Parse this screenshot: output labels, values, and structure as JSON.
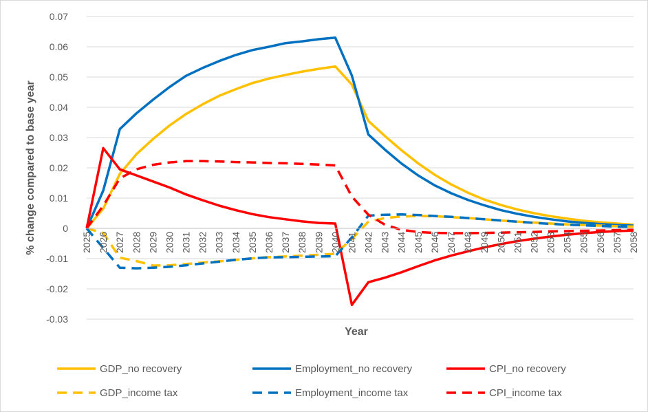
{
  "chart_data": {
    "type": "line",
    "title": "",
    "xlabel": "Year",
    "ylabel": "% change compared to base year",
    "ylim": [
      -0.03,
      0.07
    ],
    "ytick_step": 0.01,
    "grid": "horizontal",
    "legend_position": "bottom",
    "x": [
      2025,
      2026,
      2027,
      2028,
      2029,
      2030,
      2031,
      2032,
      2033,
      2034,
      2035,
      2036,
      2037,
      2038,
      2039,
      2040,
      2041,
      2042,
      2043,
      2044,
      2045,
      2046,
      2047,
      2048,
      2049,
      2050,
      2051,
      2052,
      2053,
      2054,
      2055,
      2056,
      2057,
      2058
    ],
    "yticks": [
      "0.07",
      "0.06",
      "0.05",
      "0.04",
      "0.03",
      "0.02",
      "0.01",
      "0",
      "-0.01",
      "-0.02",
      "-0.03"
    ],
    "series": [
      {
        "name": "GDP_no recovery",
        "color": "#FFC000",
        "dash": false,
        "values": [
          0,
          0.0065,
          0.018,
          0.0245,
          0.0295,
          0.034,
          0.0378,
          0.041,
          0.0438,
          0.046,
          0.048,
          0.0495,
          0.0507,
          0.0518,
          0.0527,
          0.0535,
          0.0475,
          0.0355,
          0.0305,
          0.0258,
          0.0215,
          0.0177,
          0.0145,
          0.0118,
          0.0095,
          0.0077,
          0.0062,
          0.005,
          0.004,
          0.0032,
          0.0025,
          0.002,
          0.0016,
          0.0012
        ]
      },
      {
        "name": "Employment_no recovery",
        "color": "#0070C0",
        "dash": false,
        "values": [
          0,
          0.0125,
          0.0328,
          0.038,
          0.0425,
          0.0467,
          0.0504,
          0.053,
          0.0553,
          0.0573,
          0.0589,
          0.06,
          0.0612,
          0.0618,
          0.0625,
          0.063,
          0.0505,
          0.031,
          0.026,
          0.0214,
          0.0175,
          0.0142,
          0.0116,
          0.0094,
          0.0076,
          0.006,
          0.0048,
          0.0038,
          0.003,
          0.0023,
          0.0018,
          0.0014,
          0.0011,
          0.0009
        ]
      },
      {
        "name": "CPI_no recovery",
        "color": "#FF0000",
        "dash": false,
        "values": [
          0,
          0.0265,
          0.0195,
          0.0175,
          0.0155,
          0.0135,
          0.0112,
          0.0093,
          0.0075,
          0.006,
          0.0047,
          0.0037,
          0.003,
          0.0023,
          0.0018,
          0.0016,
          -0.0253,
          -0.0178,
          -0.0163,
          -0.0145,
          -0.0125,
          -0.0106,
          -0.009,
          -0.0076,
          -0.0063,
          -0.0052,
          -0.0042,
          -0.0034,
          -0.0027,
          -0.0021,
          -0.0016,
          -0.0012,
          -0.0009,
          -0.0007
        ]
      },
      {
        "name": "GDP_income tax",
        "color": "#FFC000",
        "dash": true,
        "values": [
          0,
          -0.0015,
          -0.0097,
          -0.0108,
          -0.0123,
          -0.0122,
          -0.0118,
          -0.0113,
          -0.0109,
          -0.0104,
          -0.0099,
          -0.0095,
          -0.0093,
          -0.009,
          -0.0087,
          -0.0084,
          -0.0035,
          0.0022,
          0.0034,
          0.0039,
          0.0041,
          0.004,
          0.0037,
          0.0034,
          0.003,
          0.0026,
          0.0022,
          0.0019,
          0.0016,
          0.0013,
          0.0011,
          0.0009,
          0.0007,
          0.0006
        ]
      },
      {
        "name": "Employment_income tax",
        "color": "#0070C0",
        "dash": true,
        "values": [
          0,
          -0.0065,
          -0.013,
          -0.0132,
          -0.013,
          -0.0127,
          -0.0122,
          -0.0116,
          -0.011,
          -0.0104,
          -0.0099,
          -0.0096,
          -0.0095,
          -0.0094,
          -0.0093,
          -0.0092,
          -0.003,
          0.0042,
          0.0045,
          0.0046,
          0.0044,
          0.0041,
          0.0038,
          0.0034,
          0.003,
          0.0026,
          0.0022,
          0.0018,
          0.0015,
          0.0012,
          0.001,
          0.0008,
          0.0006,
          0.0005
        ]
      },
      {
        "name": "CPI_income tax",
        "color": "#FF0000",
        "dash": true,
        "values": [
          0,
          0.0075,
          0.0165,
          0.0195,
          0.021,
          0.0218,
          0.0222,
          0.0222,
          0.0221,
          0.0219,
          0.0218,
          0.0216,
          0.0215,
          0.0213,
          0.0211,
          0.0208,
          0.0105,
          0.0045,
          0.0012,
          -0.0005,
          -0.0012,
          -0.0015,
          -0.0016,
          -0.0016,
          -0.0015,
          -0.0014,
          -0.0013,
          -0.0012,
          -0.001,
          -0.0009,
          -0.0008,
          -0.0007,
          -0.0006,
          -0.0005
        ]
      }
    ]
  }
}
